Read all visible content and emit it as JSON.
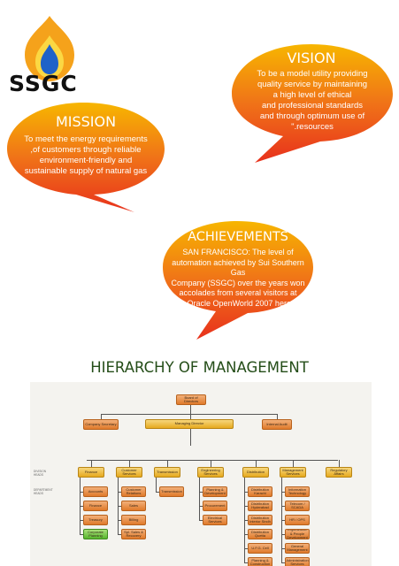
{
  "logo": {
    "text": "SSGC",
    "colors": {
      "flame_outer": "#f5a21b",
      "flame_inner": "#1f62c8",
      "flame_mid": "#fbd843"
    }
  },
  "vision": {
    "title": "VISION",
    "body": "To be a model utility providing\nquality service by maintaining\na high level of ethical\nand professional standards\nand through optimum use of\n\".resources"
  },
  "mission": {
    "title": "MISSION",
    "body": "To meet the energy requirements\n,of customers through reliable\nenvironment-friendly and\nsustainable supply of natural gas"
  },
  "achievements": {
    "title": "ACHIEVEMENTS",
    "body": "SAN FRANCISCO: The level of\nautomation achieved by Sui Southern Gas\nCompany (SSGC) over the years won\naccolades from several visitors at\n.Oracle OpenWorld 2007 here"
  },
  "bubble_colors": {
    "top": "#f7b600",
    "mid": "#f07318",
    "bottom": "#e8311c"
  },
  "heading": "HIERARCHY OF MANAGEMENT",
  "org_chart": {
    "board": "Board of Directors",
    "managing_director": "Managing Director",
    "company_secretary": "Company Secretary",
    "internal_audit": "Internal Audit",
    "side_labels": [
      "DIVISION HEADS",
      "DEPARTMENT HEADS"
    ],
    "divisions": [
      {
        "name": "Finance",
        "departments": [
          "Accounts",
          "Finance",
          "Treasury",
          "Corporate Planning"
        ]
      },
      {
        "name": "Customer Services",
        "departments": [
          "Customer Relations",
          "Sales",
          "Billing",
          "Spl. Sales & Recovery"
        ]
      },
      {
        "name": "Transmission",
        "departments": [
          "Transmission"
        ]
      },
      {
        "name": "Engineering Services",
        "departments": [
          "Planning & Development",
          "Procurement",
          "Electrical Services"
        ]
      },
      {
        "name": "Distribution",
        "departments": [
          "Distribution Karachi",
          "Distribution Hyderabad",
          "Distribution Interior Sindh",
          "Distribution Quetta",
          "U.F.G. Cell",
          "Planning & Construction"
        ]
      },
      {
        "name": "Management Services",
        "departments": [
          "Information Technology",
          "Telecom / SCADA",
          "HR / OPS",
          "Organization & People Development",
          "General Management",
          "Administration Services"
        ]
      },
      {
        "name": "Regulatory Affairs",
        "departments": []
      }
    ]
  }
}
